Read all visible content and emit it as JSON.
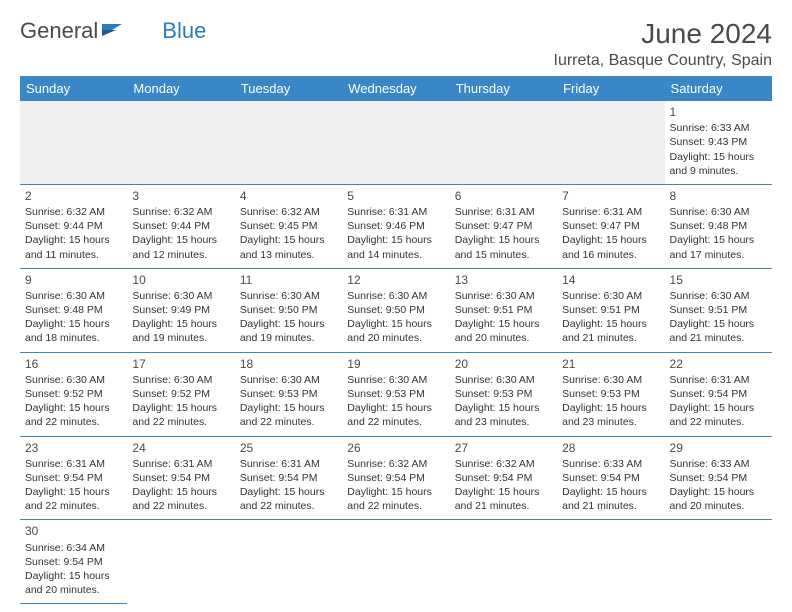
{
  "logo": {
    "part1": "General",
    "part2": "Blue"
  },
  "title": "June 2024",
  "location": "Iurreta, Basque Country, Spain",
  "colors": {
    "header_bg": "#3a87c8",
    "header_fg": "#ffffff",
    "border": "#3a87c8",
    "empty_bg": "#f0f0f0",
    "text": "#333333",
    "title_text": "#4a4a4a",
    "logo_blue": "#2a7bc0"
  },
  "weekdays": [
    "Sunday",
    "Monday",
    "Tuesday",
    "Wednesday",
    "Thursday",
    "Friday",
    "Saturday"
  ],
  "first_weekday_index": 6,
  "days": [
    {
      "n": 1,
      "sr": "6:33 AM",
      "ss": "9:43 PM",
      "dl": "15 hours and 9 minutes."
    },
    {
      "n": 2,
      "sr": "6:32 AM",
      "ss": "9:44 PM",
      "dl": "15 hours and 11 minutes."
    },
    {
      "n": 3,
      "sr": "6:32 AM",
      "ss": "9:44 PM",
      "dl": "15 hours and 12 minutes."
    },
    {
      "n": 4,
      "sr": "6:32 AM",
      "ss": "9:45 PM",
      "dl": "15 hours and 13 minutes."
    },
    {
      "n": 5,
      "sr": "6:31 AM",
      "ss": "9:46 PM",
      "dl": "15 hours and 14 minutes."
    },
    {
      "n": 6,
      "sr": "6:31 AM",
      "ss": "9:47 PM",
      "dl": "15 hours and 15 minutes."
    },
    {
      "n": 7,
      "sr": "6:31 AM",
      "ss": "9:47 PM",
      "dl": "15 hours and 16 minutes."
    },
    {
      "n": 8,
      "sr": "6:30 AM",
      "ss": "9:48 PM",
      "dl": "15 hours and 17 minutes."
    },
    {
      "n": 9,
      "sr": "6:30 AM",
      "ss": "9:48 PM",
      "dl": "15 hours and 18 minutes."
    },
    {
      "n": 10,
      "sr": "6:30 AM",
      "ss": "9:49 PM",
      "dl": "15 hours and 19 minutes."
    },
    {
      "n": 11,
      "sr": "6:30 AM",
      "ss": "9:50 PM",
      "dl": "15 hours and 19 minutes."
    },
    {
      "n": 12,
      "sr": "6:30 AM",
      "ss": "9:50 PM",
      "dl": "15 hours and 20 minutes."
    },
    {
      "n": 13,
      "sr": "6:30 AM",
      "ss": "9:51 PM",
      "dl": "15 hours and 20 minutes."
    },
    {
      "n": 14,
      "sr": "6:30 AM",
      "ss": "9:51 PM",
      "dl": "15 hours and 21 minutes."
    },
    {
      "n": 15,
      "sr": "6:30 AM",
      "ss": "9:51 PM",
      "dl": "15 hours and 21 minutes."
    },
    {
      "n": 16,
      "sr": "6:30 AM",
      "ss": "9:52 PM",
      "dl": "15 hours and 22 minutes."
    },
    {
      "n": 17,
      "sr": "6:30 AM",
      "ss": "9:52 PM",
      "dl": "15 hours and 22 minutes."
    },
    {
      "n": 18,
      "sr": "6:30 AM",
      "ss": "9:53 PM",
      "dl": "15 hours and 22 minutes."
    },
    {
      "n": 19,
      "sr": "6:30 AM",
      "ss": "9:53 PM",
      "dl": "15 hours and 22 minutes."
    },
    {
      "n": 20,
      "sr": "6:30 AM",
      "ss": "9:53 PM",
      "dl": "15 hours and 23 minutes."
    },
    {
      "n": 21,
      "sr": "6:30 AM",
      "ss": "9:53 PM",
      "dl": "15 hours and 23 minutes."
    },
    {
      "n": 22,
      "sr": "6:31 AM",
      "ss": "9:54 PM",
      "dl": "15 hours and 22 minutes."
    },
    {
      "n": 23,
      "sr": "6:31 AM",
      "ss": "9:54 PM",
      "dl": "15 hours and 22 minutes."
    },
    {
      "n": 24,
      "sr": "6:31 AM",
      "ss": "9:54 PM",
      "dl": "15 hours and 22 minutes."
    },
    {
      "n": 25,
      "sr": "6:31 AM",
      "ss": "9:54 PM",
      "dl": "15 hours and 22 minutes."
    },
    {
      "n": 26,
      "sr": "6:32 AM",
      "ss": "9:54 PM",
      "dl": "15 hours and 22 minutes."
    },
    {
      "n": 27,
      "sr": "6:32 AM",
      "ss": "9:54 PM",
      "dl": "15 hours and 21 minutes."
    },
    {
      "n": 28,
      "sr": "6:33 AM",
      "ss": "9:54 PM",
      "dl": "15 hours and 21 minutes."
    },
    {
      "n": 29,
      "sr": "6:33 AM",
      "ss": "9:54 PM",
      "dl": "15 hours and 20 minutes."
    },
    {
      "n": 30,
      "sr": "6:34 AM",
      "ss": "9:54 PM",
      "dl": "15 hours and 20 minutes."
    }
  ],
  "labels": {
    "sunrise": "Sunrise:",
    "sunset": "Sunset:",
    "daylight": "Daylight:"
  }
}
